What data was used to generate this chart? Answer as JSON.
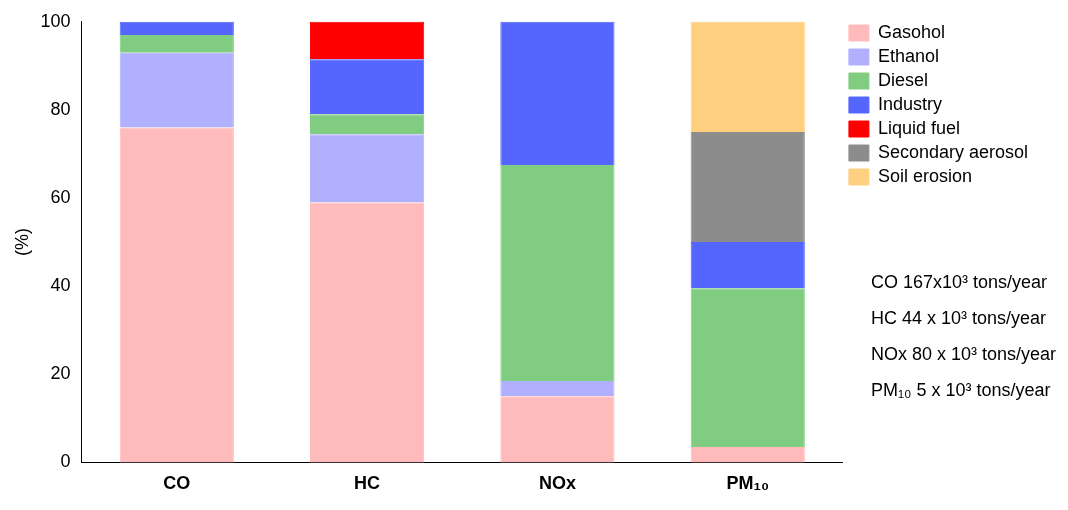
{
  "chart_data": {
    "type": "bar",
    "stacked": true,
    "ylabel": "(%)",
    "categories": [
      "CO",
      "HC",
      "NOx",
      "PM₁₀"
    ],
    "series": [
      {
        "name": "Gasohol",
        "color": "#ffbbbb",
        "values": [
          76,
          59,
          15,
          3.5
        ]
      },
      {
        "name": "Ethanol",
        "color": "#b0b0ff",
        "values": [
          17,
          15.5,
          3.5,
          null
        ]
      },
      {
        "name": "Diesel",
        "color": "#80cc80",
        "values": [
          4,
          4.5,
          49,
          36
        ]
      },
      {
        "name": "Industry",
        "color": "#5566ff",
        "values": [
          3,
          12.5,
          32.5,
          10.5
        ]
      },
      {
        "name": "Liquid fuel",
        "color": "#ff0000",
        "values": [
          null,
          8.5,
          null,
          null
        ]
      },
      {
        "name": "Secondary aerosol",
        "color": "#8c8c8c",
        "values": [
          null,
          null,
          null,
          25
        ]
      },
      {
        "name": "Soil erosion",
        "color": "#ffd080",
        "values": [
          null,
          null,
          null,
          25
        ]
      }
    ],
    "ylim": [
      0,
      100
    ],
    "yticks": [
      0,
      20,
      40,
      60,
      80,
      100
    ],
    "grid": false,
    "legend": "right",
    "annotations": [
      "CO 167x10³ tons/year",
      "HC 44 x 10³ tons/year",
      "NOx 80 x 10³ tons/year",
      "PM₁₀ 5 x 10³ tons/year"
    ]
  }
}
